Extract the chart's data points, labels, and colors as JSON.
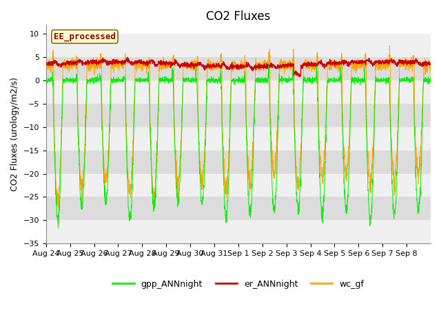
{
  "title": "CO2 Fluxes",
  "ylabel": "CO2 Fluxes (urology/m2/s)",
  "xlabel": "",
  "ylim": [
    -35,
    12
  ],
  "yticks": [
    -35,
    -30,
    -25,
    -20,
    -15,
    -10,
    -5,
    0,
    5,
    10
  ],
  "annotation_text": "EE_processed",
  "annotation_color": "#8B0000",
  "annotation_bg": "#FFFFCC",
  "annotation_border": "#8B6914",
  "colors": {
    "gpp_ANNnight": "#00EE00",
    "er_ANNnight": "#CC0000",
    "wc_gf": "#FFA500"
  },
  "band_colors": [
    "#F0F0F0",
    "#DCDCDC"
  ],
  "fig_bg": "#FFFFFF",
  "plot_bg": "#FFFFFF",
  "n_days": 16,
  "points_per_day": 144,
  "date_labels": [
    "Aug 24",
    "Aug 25",
    "Aug 26",
    "Aug 27",
    "Aug 28",
    "Aug 29",
    "Aug 30",
    "Aug 31",
    "Sep 1",
    "Sep 2",
    "Sep 3",
    "Sep 4",
    "Sep 5",
    "Sep 6",
    "Sep 7",
    "Sep 8"
  ],
  "title_fontsize": 12,
  "label_fontsize": 9,
  "tick_fontsize": 8,
  "legend_fontsize": 9
}
